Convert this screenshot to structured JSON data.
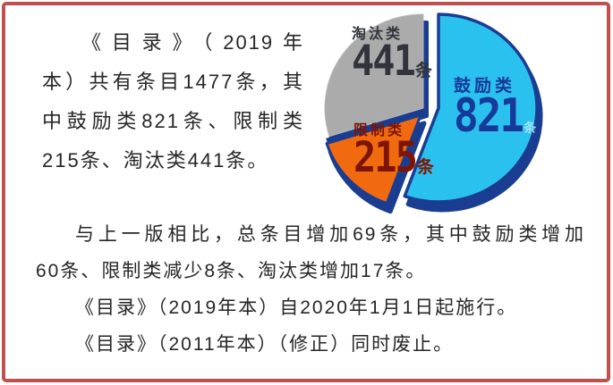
{
  "palette": {
    "frame_red": "#c0504d",
    "text_dark": "#262626",
    "pie_blue": "#2bc1ee",
    "pie_orange": "#f26a0f",
    "pie_gray": "#ababab",
    "pie_navy": "#1b3d91",
    "label_eliminate": "#31343c",
    "label_restrict": "#7d1504",
    "label_encourage": "#16399a",
    "label_encourage_unit": "#9ee4fb"
  },
  "intro_paragraph": {
    "lines": [
      "《目录》（2019年",
      "本）共有条目1477条，其",
      "中鼓励类821条、限制类",
      "215条、淘汰类441条。"
    ]
  },
  "details": {
    "lines": [
      "与上一版相比，总条目增加69条，其中鼓励类增加",
      "60条、限制类减少8条、淘汰类增加17条。",
      "《目录》（2019年本）自2020年1月1日起施行。",
      "《目录》（2011年本）（修正）同时废止。"
    ]
  },
  "chart_data": {
    "type": "pie",
    "labels": [
      "鼓励类",
      "限制类",
      "淘汰类"
    ],
    "values": [
      821,
      215,
      441
    ],
    "unit": "条",
    "total": 1477,
    "colors": [
      "#2bc1ee",
      "#f26a0f",
      "#ababab"
    ],
    "depth_color": "#1b3d91",
    "start_angle_deg": 90,
    "exploded_slice": "鼓励类",
    "style": "3d-exploded",
    "legend_position": "labels-on-slices"
  },
  "pie_labels": {
    "encourage": {
      "name": "鼓励类",
      "value": "821",
      "unit": "条"
    },
    "restrict": {
      "name": "限制类",
      "value": "215",
      "unit": "条"
    },
    "eliminate": {
      "name": "淘汰类",
      "value": "441",
      "unit": "条"
    }
  }
}
